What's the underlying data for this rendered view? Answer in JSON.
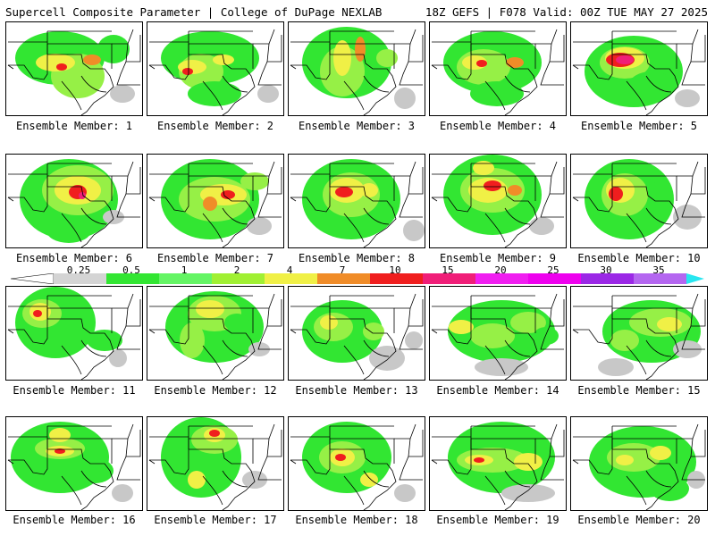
{
  "header": {
    "title": "Supercell Composite Parameter | College of DuPage NEXLAB",
    "run_info": "18Z GEFS | F078 Valid: 00Z TUE MAY 27 2025"
  },
  "colorbar": {
    "ticks": [
      "0.25",
      "0.5",
      "1",
      "2",
      "4",
      "7",
      "10",
      "15",
      "20",
      "25",
      "30",
      "35"
    ],
    "colors": [
      "#d4d4d4",
      "#32e632",
      "#64f564",
      "#a0f032",
      "#f0f046",
      "#f08c28",
      "#f01e1e",
      "#f01e78",
      "#f01ef0",
      "#ee00ee",
      "#9b28e6",
      "#b466f0",
      "#28e6f0"
    ]
  },
  "legend_colors": {
    "gray": "#c8c8c8",
    "green": "#32e632",
    "lightgreen": "#96f046",
    "yellow": "#f0f046",
    "orange": "#f08c28",
    "red": "#f01e1e",
    "magenta": "#f01e78"
  },
  "members": [
    {
      "label": "Ensemble Member: 1"
    },
    {
      "label": "Ensemble Member: 2"
    },
    {
      "label": "Ensemble Member: 3"
    },
    {
      "label": "Ensemble Member: 4"
    },
    {
      "label": "Ensemble Member: 5"
    },
    {
      "label": "Ensemble Member: 6"
    },
    {
      "label": "Ensemble Member: 7"
    },
    {
      "label": "Ensemble Member: 8"
    },
    {
      "label": "Ensemble Member: 9"
    },
    {
      "label": "Ensemble Member: 10"
    },
    {
      "label": "Ensemble Member: 11"
    },
    {
      "label": "Ensemble Member: 12"
    },
    {
      "label": "Ensemble Member: 13"
    },
    {
      "label": "Ensemble Member: 14"
    },
    {
      "label": "Ensemble Member: 15"
    },
    {
      "label": "Ensemble Member: 16"
    },
    {
      "label": "Ensemble Member: 17"
    },
    {
      "label": "Ensemble Member: 18"
    },
    {
      "label": "Ensemble Member: 19"
    },
    {
      "label": "Ensemble Member: 20"
    }
  ]
}
